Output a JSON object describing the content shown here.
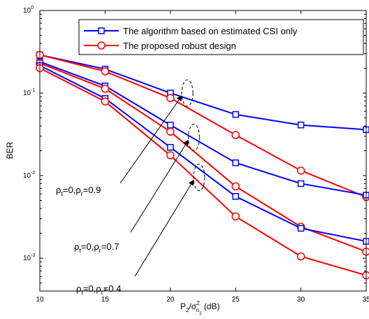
{
  "chart_data": {
    "type": "line",
    "x": [
      10,
      15,
      20,
      25,
      30,
      35
    ],
    "xlim": [
      10,
      35
    ],
    "ylim": [
      0.0004,
      1
    ],
    "yscale": "log",
    "grid": false,
    "xlabel": {
      "base": "P",
      "base_sub": "2",
      "sep": "/σ",
      "sigma_sup": "2",
      "sigma_sub": "n",
      "sigma_subsub": "2",
      "unit": " (dB)"
    },
    "ylabel": "BER",
    "xticks": [
      10,
      15,
      20,
      25,
      30,
      35
    ],
    "yticks": [
      {
        "value": 0.001,
        "base": "10",
        "exp": "-3"
      },
      {
        "value": 0.01,
        "base": "10",
        "exp": "-2"
      },
      {
        "value": 0.1,
        "base": "10",
        "exp": "-1"
      },
      {
        "value": 1,
        "base": "10",
        "exp": "0"
      }
    ],
    "legend": {
      "position": "top-right",
      "entries": [
        {
          "label": "The algorithm based on estimated CSI only",
          "color": "#0000ff",
          "marker": "square"
        },
        {
          "label": "The proposed robust design",
          "color": "#ff0000",
          "marker": "circle"
        }
      ]
    },
    "series": [
      {
        "group": "estimated CSI only",
        "rho": "ρr=0.9",
        "color": "#0000ff",
        "marker": "square",
        "values": [
          0.29,
          0.195,
          0.1,
          0.055,
          0.041,
          0.036
        ]
      },
      {
        "group": "robust design",
        "rho": "ρr=0.9",
        "color": "#ff0000",
        "marker": "circle",
        "values": [
          0.29,
          0.183,
          0.087,
          0.031,
          0.0115,
          0.0055
        ]
      },
      {
        "group": "estimated CSI only",
        "rho": "ρr=0.7",
        "color": "#0000ff",
        "marker": "square",
        "values": [
          0.24,
          0.122,
          0.041,
          0.0143,
          0.008,
          0.0058
        ]
      },
      {
        "group": "robust design",
        "rho": "ρr=0.7",
        "color": "#ff0000",
        "marker": "circle",
        "values": [
          0.23,
          0.113,
          0.034,
          0.0074,
          0.0024,
          0.0012
        ]
      },
      {
        "group": "estimated CSI only",
        "rho": "ρr=0.4",
        "color": "#0000ff",
        "marker": "square",
        "values": [
          0.215,
          0.086,
          0.022,
          0.0056,
          0.0023,
          0.0016
        ]
      },
      {
        "group": "robust design",
        "rho": "ρr=0.4",
        "color": "#ff0000",
        "marker": "circle",
        "values": [
          0.2,
          0.079,
          0.0176,
          0.0032,
          0.00105,
          0.00062
        ]
      }
    ],
    "annotations": [
      {
        "rho_t": "t",
        "rho_r": "r",
        "text1": "ρ",
        "text2": "=0,ρ",
        "text3": "=0.9",
        "ellipse_x": 21.3,
        "ellipse_y": 0.1
      },
      {
        "rho_t": "t",
        "rho_r": "r",
        "text1": "ρ",
        "text2": "=0,ρ",
        "text3": "=0.7",
        "ellipse_x": 21.8,
        "ellipse_y": 0.029
      },
      {
        "rho_t": "t",
        "rho_r": "r",
        "text1": "ρ",
        "text2": "=0,ρ",
        "text3": "=0.4",
        "ellipse_x": 22.2,
        "ellipse_y": 0.0095
      }
    ]
  }
}
